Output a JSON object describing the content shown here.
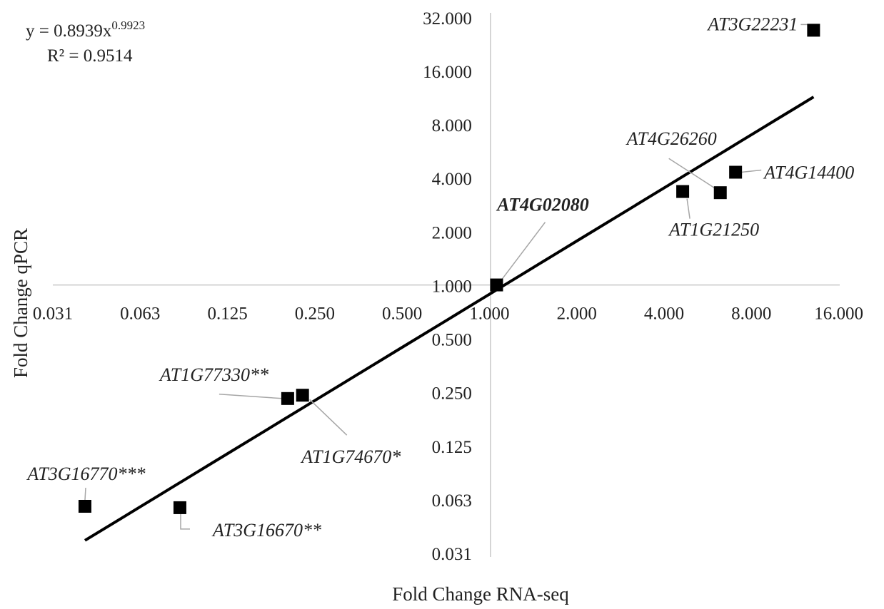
{
  "chart_data": {
    "type": "scatter",
    "xscale": "log2",
    "yscale": "log2",
    "xlabel": "Fold Change RNA-seq",
    "ylabel": "Fold Change qPCR",
    "xlim": [
      0.031,
      16.0
    ],
    "ylim": [
      0.031,
      32.0
    ],
    "x_ticks": [
      "0.031",
      "0.063",
      "0.125",
      "0.250",
      "0.500",
      "1.000",
      "2.000",
      "4.000",
      "8.000",
      "16.000"
    ],
    "y_ticks": [
      "0.031",
      "0.063",
      "0.125",
      "0.250",
      "0.500",
      "1.000",
      "2.000",
      "4.000",
      "8.000",
      "16.000",
      "32.000"
    ],
    "equation": "y = 0.8939x",
    "equation_exponent": "0.9923",
    "r_squared": "R² = 0.9514",
    "trendline": {
      "type": "power",
      "a": 0.8939,
      "b": 0.9923
    },
    "grid": false,
    "points": [
      {
        "label": "AT3G22231",
        "x": 13.0,
        "y": 27.0,
        "bold": false
      },
      {
        "label": "AT4G14400",
        "x": 7.0,
        "y": 4.3,
        "bold": false
      },
      {
        "label": "AT4G26260",
        "x": 6.2,
        "y": 3.3,
        "bold": false
      },
      {
        "label": "AT1G21250",
        "x": 4.6,
        "y": 3.35,
        "bold": false
      },
      {
        "label": "AT4G02080",
        "x": 1.05,
        "y": 1.0,
        "bold": true
      },
      {
        "label": "AT1G77330**",
        "x": 0.2,
        "y": 0.23,
        "bold": false
      },
      {
        "label": "AT1G74670*",
        "x": 0.225,
        "y": 0.24,
        "bold": false
      },
      {
        "label": "AT3G16770***",
        "x": 0.04,
        "y": 0.057,
        "bold": false
      },
      {
        "label": "AT3G16670**",
        "x": 0.085,
        "y": 0.056,
        "bold": false
      }
    ]
  }
}
